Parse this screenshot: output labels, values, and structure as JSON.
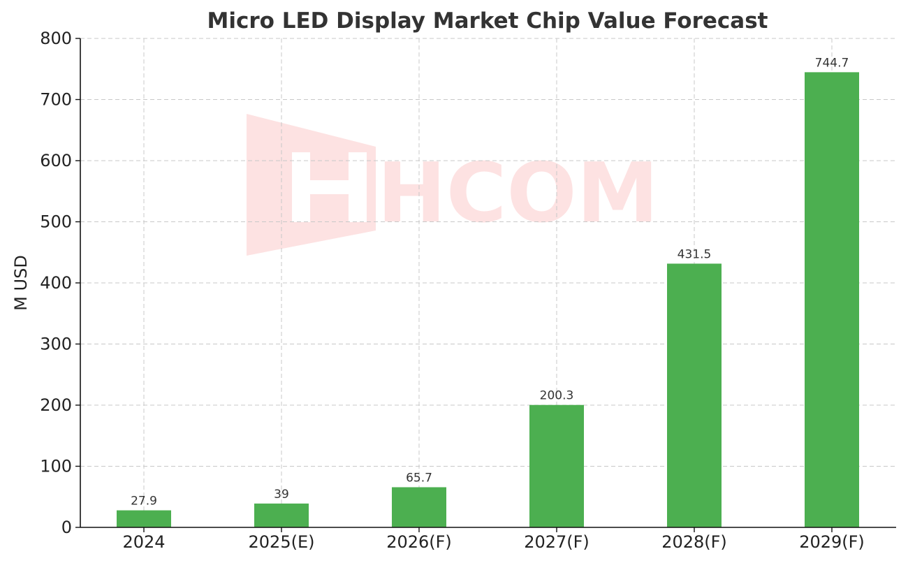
{
  "chart_data": {
    "type": "bar",
    "title": "Micro LED Display Market Chip Value Forecast",
    "xlabel": "",
    "ylabel": "M USD",
    "categories": [
      "2024",
      "2025(E)",
      "2026(F)",
      "2027(F)",
      "2028(F)",
      "2029(F)"
    ],
    "values": [
      27.9,
      39,
      65.7,
      200.3,
      431.5,
      744.7
    ],
    "data_labels": [
      "27.9",
      "39",
      "65.7",
      "200.3",
      "431.5",
      "744.7"
    ],
    "ylim": [
      0,
      800
    ],
    "yticks": [
      0,
      100,
      200,
      300,
      400,
      500,
      600,
      700,
      800
    ],
    "grid": true,
    "bar_color": "#4caf50",
    "watermark": {
      "text": "HCOM",
      "color": "#fde2e2"
    }
  }
}
